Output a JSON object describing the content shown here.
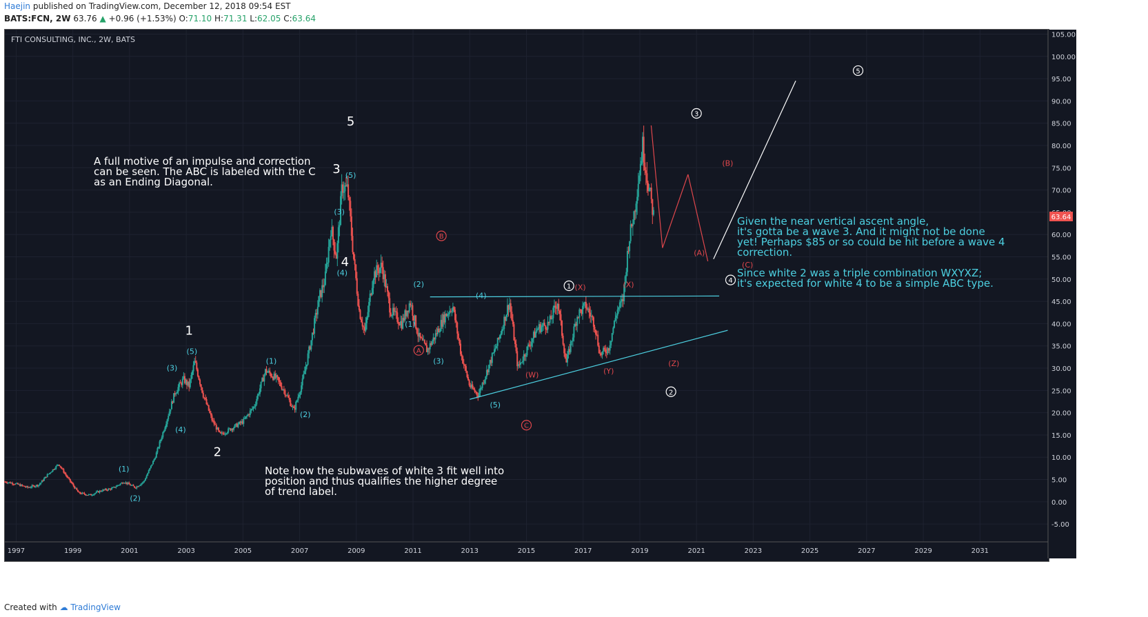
{
  "header": {
    "author": "Haejin",
    "published": "published on TradingView.com, December 12, 2018 09:54 EST",
    "symbol": "BATS:FCN, 2W",
    "last": "63.76",
    "change": "+0.96 (+1.53%)",
    "open_label": "O:",
    "open": "71.10",
    "high_label": "H:",
    "high": "71.31",
    "low_label": "L:",
    "low": "62.05",
    "close_label": "C:",
    "close": "63.64"
  },
  "chart_title": "FTI CONSULTING, INC., 2W, BATS",
  "footer": {
    "created": "Created with",
    "brand": "TradingView"
  },
  "price_tag": "63.64",
  "colors": {
    "background": "#131722",
    "up": "#26a69a",
    "down": "#ef5350",
    "cyan": "#4dd0e1",
    "red": "#e0474c",
    "white": "#ffffff",
    "axis_text": "#b2b5be"
  },
  "annotations": {
    "note1": [
      "A full motive of an impulse and correction",
      "can be seen. The ABC is labeled with the C",
      "as an Ending Diagonal."
    ],
    "note2": [
      "Note how the subwaves of white 3 fit well into",
      "position and thus qualifies the higher degree",
      " of trend label."
    ],
    "note3": [
      "Given the near vertical ascent angle,",
      "it's gotta be a wave 3. And it might not be done",
      "yet! Perhaps $85 or so could be hit before a wave 4",
      "correction.",
      "",
      "Since white 2 was a triple combination WXYXZ;",
      "it's expected for white 4 to be a simple ABC type."
    ]
  },
  "chart_data": {
    "type": "candlestick",
    "title": "FTI CONSULTING, INC., 2W, BATS",
    "y_ticks": [
      "105.00",
      "100.00",
      "95.00",
      "90.00",
      "85.00",
      "80.00",
      "75.00",
      "70.00",
      "65.00",
      "60.00",
      "55.00",
      "50.00",
      "45.00",
      "40.00",
      "35.00",
      "30.00",
      "25.00",
      "20.00",
      "15.00",
      "10.00",
      "5.00",
      "0.00",
      "-5.00"
    ],
    "x_ticks": [
      "1997",
      "1999",
      "2001",
      "2003",
      "2005",
      "2007",
      "2009",
      "2011",
      "2013",
      "2015",
      "2017",
      "2019",
      "2021",
      "2023",
      "2025",
      "2027",
      "2029",
      "2031"
    ],
    "ylim": [
      -9,
      106
    ],
    "xlim": [
      1996.6,
      2033.4
    ],
    "price_path": [
      [
        1996.6,
        4.5
      ],
      [
        1997.0,
        4.0
      ],
      [
        1997.4,
        3.2
      ],
      [
        1997.8,
        3.8
      ],
      [
        1998.1,
        6.0
      ],
      [
        1998.5,
        8.5
      ],
      [
        1998.8,
        5.5
      ],
      [
        1999.2,
        2.0
      ],
      [
        1999.6,
        1.5
      ],
      [
        2000.0,
        2.5
      ],
      [
        2000.4,
        3.0
      ],
      [
        2000.8,
        4.5
      ],
      [
        2001.2,
        3.2
      ],
      [
        2001.5,
        4.5
      ],
      [
        2001.9,
        10.0
      ],
      [
        2002.2,
        16.0
      ],
      [
        2002.6,
        24.5
      ],
      [
        2002.9,
        27.5
      ],
      [
        2003.1,
        26.0
      ],
      [
        2003.3,
        31.5
      ],
      [
        2003.6,
        24.0
      ],
      [
        2003.9,
        18.5
      ],
      [
        2004.2,
        15.0
      ],
      [
        2004.6,
        16.5
      ],
      [
        2005.0,
        18.0
      ],
      [
        2005.4,
        21.5
      ],
      [
        2005.8,
        29.5
      ],
      [
        2006.2,
        27.5
      ],
      [
        2006.5,
        24.5
      ],
      [
        2006.8,
        20.5
      ],
      [
        2007.1,
        27.0
      ],
      [
        2007.4,
        36.0
      ],
      [
        2007.7,
        46.0
      ],
      [
        2007.9,
        50.0
      ],
      [
        2008.1,
        61.5
      ],
      [
        2008.3,
        55.0
      ],
      [
        2008.5,
        71.0
      ],
      [
        2008.7,
        70.0
      ],
      [
        2008.9,
        55.0
      ],
      [
        2009.1,
        43.0
      ],
      [
        2009.3,
        38.0
      ],
      [
        2009.6,
        51.0
      ],
      [
        2009.9,
        53.0
      ],
      [
        2010.2,
        43.0
      ],
      [
        2010.6,
        40.0
      ],
      [
        2010.9,
        45.0
      ],
      [
        2011.2,
        37.0
      ],
      [
        2011.5,
        34.0
      ],
      [
        2011.8,
        37.5
      ],
      [
        2012.1,
        41.5
      ],
      [
        2012.4,
        44.0
      ],
      [
        2012.7,
        33.0
      ],
      [
        2013.0,
        26.0
      ],
      [
        2013.3,
        24.0
      ],
      [
        2013.7,
        31.0
      ],
      [
        2014.0,
        36.0
      ],
      [
        2014.4,
        45.0
      ],
      [
        2014.7,
        30.0
      ],
      [
        2015.0,
        34.0
      ],
      [
        2015.4,
        39.0
      ],
      [
        2015.8,
        40.0
      ],
      [
        2016.1,
        45.0
      ],
      [
        2016.4,
        31.0
      ],
      [
        2016.8,
        42.0
      ],
      [
        2017.1,
        44.0
      ],
      [
        2017.4,
        40.0
      ],
      [
        2017.6,
        33.0
      ],
      [
        2017.9,
        34.5
      ],
      [
        2018.2,
        43.0
      ],
      [
        2018.4,
        45.0
      ],
      [
        2018.6,
        58.0
      ],
      [
        2018.8,
        65.0
      ],
      [
        2019.1,
        80.0
      ],
      [
        2019.3,
        71.0
      ],
      [
        2019.5,
        63.8
      ]
    ],
    "lines": [
      {
        "color": "cyan",
        "from": [
          2011.6,
          46.0
        ],
        "to": [
          2021.8,
          46.2
        ]
      },
      {
        "color": "cyan",
        "from": [
          2013.0,
          23.0
        ],
        "to": [
          2022.1,
          38.5
        ]
      },
      {
        "color": "red",
        "from": [
          2019.4,
          84.5
        ],
        "to": [
          2019.8,
          57.0
        ]
      },
      {
        "color": "red",
        "from": [
          2019.8,
          57.0
        ],
        "to": [
          2020.7,
          73.5
        ]
      },
      {
        "color": "red",
        "from": [
          2020.7,
          73.5
        ],
        "to": [
          2021.4,
          54.0
        ]
      },
      {
        "color": "white",
        "from": [
          2021.6,
          54.5
        ],
        "to": [
          2024.5,
          94.5
        ]
      }
    ],
    "labels": [
      {
        "t": "(1)",
        "x": 2000.8,
        "y": 6.8,
        "c": "cyan"
      },
      {
        "t": "(2)",
        "x": 2001.2,
        "y": 0.2,
        "c": "cyan"
      },
      {
        "t": "(3)",
        "x": 2002.5,
        "y": 29.5,
        "c": "cyan"
      },
      {
        "t": "(4)",
        "x": 2002.8,
        "y": 15.6,
        "c": "cyan"
      },
      {
        "t": "(5)",
        "x": 2003.2,
        "y": 33.2,
        "c": "cyan"
      },
      {
        "t": "(1)",
        "x": 2006.0,
        "y": 31.0,
        "c": "cyan"
      },
      {
        "t": "(2)",
        "x": 2007.2,
        "y": 19.0,
        "c": "cyan"
      },
      {
        "t": "(3)",
        "x": 2008.4,
        "y": 64.5,
        "c": "cyan"
      },
      {
        "t": "(4)",
        "x": 2008.5,
        "y": 50.8,
        "c": "cyan"
      },
      {
        "t": "(5)",
        "x": 2008.8,
        "y": 72.7,
        "c": "cyan"
      },
      {
        "t": "(1)",
        "x": 2010.9,
        "y": 39.3,
        "c": "cyan"
      },
      {
        "t": "(2)",
        "x": 2011.2,
        "y": 48.3,
        "c": "cyan"
      },
      {
        "t": "(3)",
        "x": 2011.9,
        "y": 31.0,
        "c": "cyan"
      },
      {
        "t": "(4)",
        "x": 2013.4,
        "y": 45.7,
        "c": "cyan"
      },
      {
        "t": "(5)",
        "x": 2013.9,
        "y": 21.2,
        "c": "cyan"
      },
      {
        "t": "1",
        "x": 2003.1,
        "y": 37.5,
        "c": "white",
        "big": true
      },
      {
        "t": "2",
        "x": 2004.1,
        "y": 10.3,
        "c": "white",
        "big": true
      },
      {
        "t": "3",
        "x": 2008.3,
        "y": 73.8,
        "c": "white",
        "big": true
      },
      {
        "t": "4",
        "x": 2008.6,
        "y": 52.9,
        "c": "white",
        "big": true
      },
      {
        "t": "5",
        "x": 2008.8,
        "y": 84.5,
        "c": "white",
        "big": true
      },
      {
        "t": "(W)",
        "x": 2015.2,
        "y": 27.9,
        "c": "red"
      },
      {
        "t": "(X)",
        "x": 2016.9,
        "y": 47.6,
        "c": "red"
      },
      {
        "t": "(Y)",
        "x": 2017.9,
        "y": 28.8,
        "c": "red"
      },
      {
        "t": "(X)",
        "x": 2018.6,
        "y": 48.2,
        "c": "red"
      },
      {
        "t": "(Z)",
        "x": 2020.2,
        "y": 30.5,
        "c": "red"
      },
      {
        "t": "(A)",
        "x": 2021.1,
        "y": 55.3,
        "c": "red"
      },
      {
        "t": "(B)",
        "x": 2022.1,
        "y": 75.4,
        "c": "red"
      },
      {
        "t": "(C)",
        "x": 2022.8,
        "y": 52.6,
        "c": "red"
      }
    ],
    "circle_labels": [
      {
        "t": "A",
        "x": 2011.2,
        "y": 34.0,
        "c": "red"
      },
      {
        "t": "B",
        "x": 2012.0,
        "y": 59.7,
        "c": "red"
      },
      {
        "t": "C",
        "x": 2015.0,
        "y": 17.2,
        "c": "red"
      },
      {
        "t": "1",
        "x": 2016.5,
        "y": 48.5,
        "c": "white"
      },
      {
        "t": "2",
        "x": 2020.1,
        "y": 24.7,
        "c": "white"
      },
      {
        "t": "3",
        "x": 2021.0,
        "y": 87.2,
        "c": "white"
      },
      {
        "t": "4",
        "x": 2022.2,
        "y": 49.8,
        "c": "white"
      },
      {
        "t": "5",
        "x": 2026.7,
        "y": 96.8,
        "c": "white"
      }
    ]
  }
}
